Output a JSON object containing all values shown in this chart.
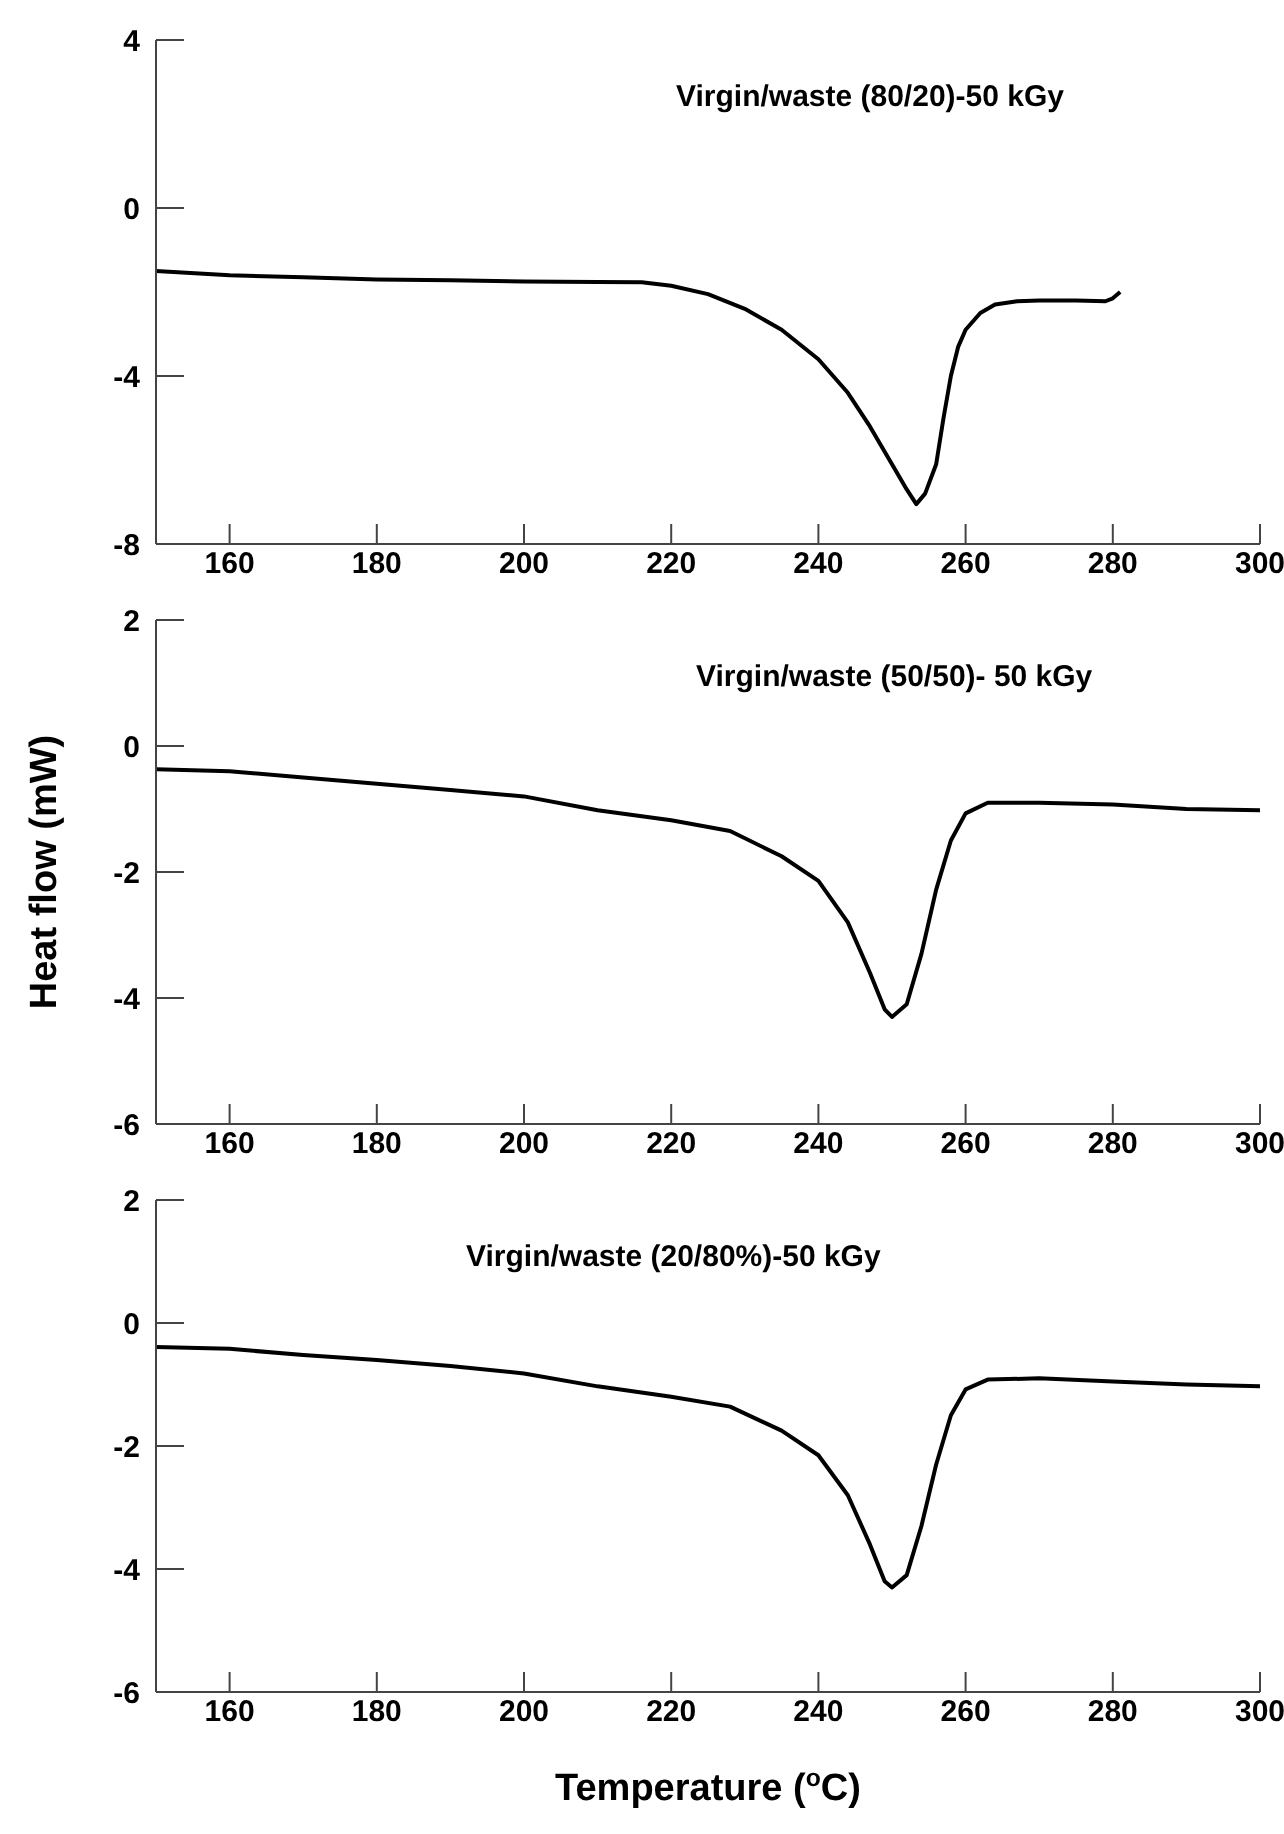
{
  "chart_data": [
    {
      "type": "line",
      "title": "Virgin/waste (80/20)-50 kGy",
      "xlim": [
        150,
        300
      ],
      "xticks": [
        160,
        180,
        200,
        220,
        240,
        260,
        280,
        300
      ],
      "ylim": [
        -8,
        4
      ],
      "yticks": [
        -8,
        -4,
        0,
        4
      ],
      "x": [
        150,
        160,
        170,
        180,
        190,
        200,
        210,
        216,
        220,
        225,
        230,
        235,
        240,
        244,
        247,
        250,
        252,
        253.3,
        254.5,
        256,
        257,
        258,
        259,
        260,
        262,
        264,
        267,
        270,
        275,
        279,
        280,
        281
      ],
      "series": [
        {
          "color": "#000000",
          "values": [
            -1.5,
            -1.6,
            -1.65,
            -1.7,
            -1.72,
            -1.75,
            -1.76,
            -1.77,
            -1.85,
            -2.05,
            -2.4,
            -2.9,
            -3.6,
            -4.4,
            -5.2,
            -6.1,
            -6.7,
            -7.05,
            -6.8,
            -6.1,
            -5.0,
            -4.0,
            -3.3,
            -2.9,
            -2.5,
            -2.3,
            -2.22,
            -2.2,
            -2.2,
            -2.22,
            -2.15,
            -2.0
          ]
        }
      ]
    },
    {
      "type": "line",
      "title": "Virgin/waste (50/50)- 50 kGy",
      "ylabel": "Heat flow (mW)",
      "xlim": [
        150,
        300
      ],
      "xticks": [
        160,
        180,
        200,
        220,
        240,
        260,
        280,
        300
      ],
      "ylim": [
        -6,
        2
      ],
      "yticks": [
        -6,
        -4,
        -2,
        0,
        2
      ],
      "x": [
        150,
        160,
        170,
        180,
        190,
        200,
        210,
        220,
        228,
        235,
        240,
        244,
        247,
        249,
        250,
        252,
        254,
        256,
        258,
        260,
        263,
        270,
        280,
        290,
        300
      ],
      "series": [
        {
          "color": "#000000",
          "values": [
            -0.37,
            -0.4,
            -0.5,
            -0.6,
            -0.7,
            -0.8,
            -1.02,
            -1.18,
            -1.35,
            -1.75,
            -2.14,
            -2.8,
            -3.6,
            -4.18,
            -4.3,
            -4.1,
            -3.3,
            -2.28,
            -1.5,
            -1.07,
            -0.9,
            -0.9,
            -0.93,
            -1.0,
            -1.02
          ]
        }
      ]
    },
    {
      "type": "line",
      "title": "Virgin/waste (20/80%)-50 kGy",
      "xlabel": "Temperature ($^{o}$C)",
      "xlim": [
        150,
        300
      ],
      "xticks": [
        160,
        180,
        200,
        220,
        240,
        260,
        280,
        300
      ],
      "ylim": [
        -6,
        2
      ],
      "yticks": [
        -6,
        -4,
        -2,
        0,
        2
      ],
      "x": [
        150,
        160,
        170,
        180,
        190,
        200,
        210,
        220,
        228,
        235,
        240,
        244,
        247,
        249,
        250,
        252,
        254,
        256,
        258,
        260,
        263,
        270,
        280,
        290,
        300
      ],
      "series": [
        {
          "color": "#000000",
          "values": [
            -0.39,
            -0.42,
            -0.52,
            -0.6,
            -0.7,
            -0.82,
            -1.03,
            -1.2,
            -1.36,
            -1.75,
            -2.15,
            -2.8,
            -3.6,
            -4.2,
            -4.3,
            -4.1,
            -3.3,
            -2.3,
            -1.5,
            -1.08,
            -0.92,
            -0.9,
            -0.95,
            -1.0,
            -1.03
          ]
        }
      ]
    }
  ]
}
